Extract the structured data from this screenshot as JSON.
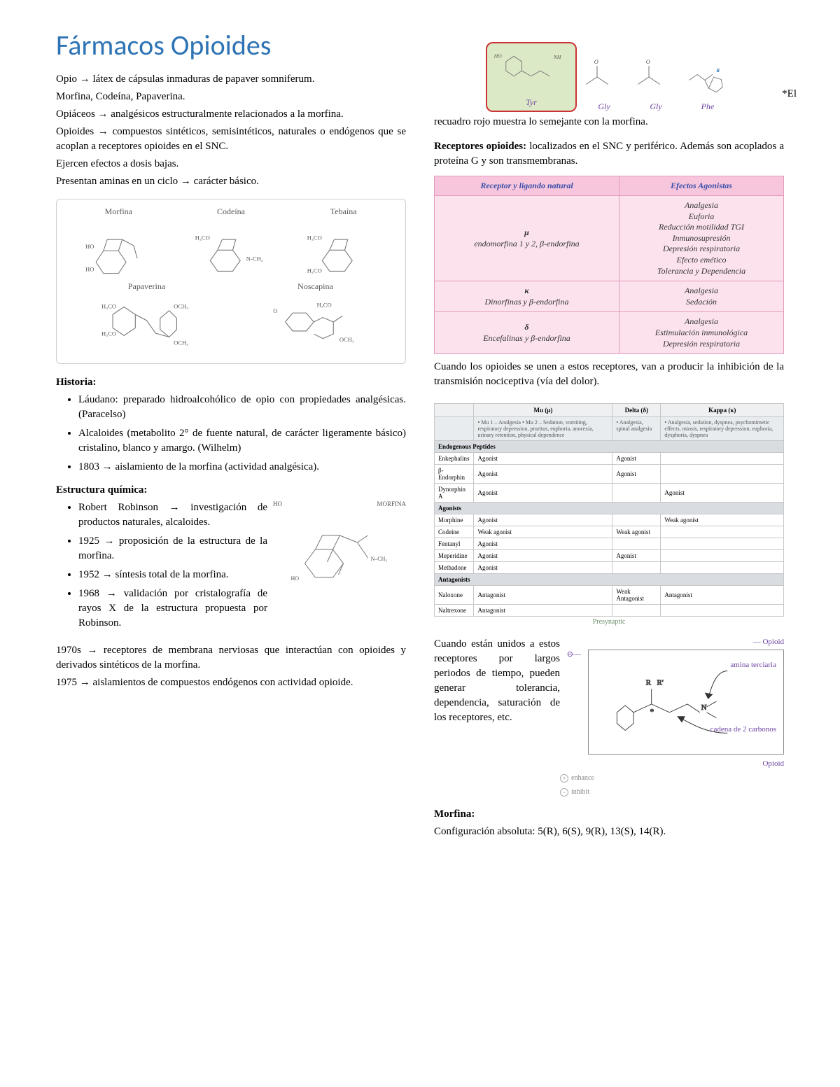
{
  "title": "Fármacos Opioides",
  "left": {
    "intro": [
      "Opio → látex de cápsulas inmaduras de papaver somniferum.",
      "Morfina, Codeína, Papaverina.",
      "Opiáceos → analgésicos estructuralmente relacionados a la morfina.",
      "Opioides → compuestos sintéticos, semisintéticos, naturales o endógenos que se acoplan a receptores opioides en el SNC.",
      "Ejercen efectos a dosis bajas.",
      "Presentan aminas en un ciclo → carácter básico."
    ],
    "structures": [
      "Morfina",
      "Codeína",
      "Tebaína",
      "Papaverina",
      "Noscapina"
    ],
    "historia_label": "Historia:",
    "historia": [
      "Láudano: preparado hidroalcohólico de opio con propiedades analgésicas. (Paracelso)",
      "Alcaloides (metabolito 2° de fuente natural, de carácter ligeramente básico)  cristalino, blanco y amargo. (Wilhelm)",
      "1803 → aislamiento de la morfina (actividad analgésica)."
    ],
    "estruct_label": "Estructura química:",
    "morphine_caption": "MORFINA",
    "estruct": [
      "Robert Robinson → investigación de productos naturales, alcaloides.",
      "1925 → proposición de la estructura de la morfina.",
      "1952 → síntesis total de la morfina.",
      "1968 → validación por cristalografía de rayos X de la estructura propuesta por Robinson."
    ],
    "tail": [
      "1970s → receptores de membrana nerviosas que interactúan con opioides y derivados sintéticos de la morfina.",
      "1975 → aislamientos de compuestos endógenos con actividad opioide."
    ]
  },
  "right": {
    "aa_labels": [
      "Tyr",
      "Gly",
      "Gly",
      "Phe"
    ],
    "r_label": "R",
    "ho_label": "HO",
    "nh_label": "NH",
    "asterisk": "*El",
    "caption": "recuadro rojo muestra lo semejante con la morfina.",
    "receptores_intro": "Receptores opioides: localizados en el SNC y periférico. Además son acoplados a proteína G y son transmembranas.",
    "receptores_intro_bold": "Receptores opioides:",
    "receptores_intro_rest": " localizados en el SNC y periférico. Además son acoplados a proteína G y son transmembranas.",
    "rec_table": {
      "head": [
        "Receptor y ligando natural",
        "Efectos Agonistas"
      ],
      "rows": [
        {
          "lig": "μ\nendomorfina 1 y 2, β-endorfina",
          "eff": "Analgesia\nEuforia\nReducción motilidad TGI\nInmunosupresión\nDepresión respiratoria\nEfecto emético\nTolerancia y Dependencia"
        },
        {
          "lig": "κ\nDinorfinas y β-endorfina",
          "eff": "Analgesia\nSedación"
        },
        {
          "lig": "δ\nEncefalinas y β-endorfina",
          "eff": "Analgesia\nEstimulación inmunológica\nDepresión respiratoria"
        }
      ]
    },
    "after_table": "Cuando los opioides se unen a estos receptores, van a producir la inhibición de la transmisión nociceptiva (vía del dolor).",
    "clin_table": {
      "head": [
        "",
        "Mu (μ)",
        "Delta (δ)",
        "Kappa (κ)"
      ],
      "desc": [
        "",
        "• Mu 1 – Analgesia\n• Mu 2 – Sedation, vomiting, respiratory depression, pruritus, euphoria, anorexia, urinary retention, physical dependence",
        "• Analgesia, spinal analgesia",
        "• Analgesia, sedation, dyspnea, psychomimetic effects, miosis, respiratory depression, euphoria, dysphoria, dyspnea"
      ],
      "groups": [
        {
          "title": "Endogenous Peptides",
          "rows": [
            [
              "Enkephalins",
              "Agonist",
              "Agonist",
              ""
            ],
            [
              "β-Endorphin",
              "Agonist",
              "Agonist",
              ""
            ],
            [
              "Dynorphin A",
              "Agonist",
              "",
              "Agonist"
            ]
          ]
        },
        {
          "title": "Agonists",
          "rows": [
            [
              "Morphine",
              "Agonist",
              "",
              "Weak agonist"
            ],
            [
              "Codeine",
              "Weak agonist",
              "Weak agonist",
              ""
            ],
            [
              "Fentanyl",
              "Agonist",
              "",
              ""
            ],
            [
              "Meperidine",
              "Agonist",
              "Agonist",
              ""
            ],
            [
              "Methadone",
              "Agonist",
              "",
              ""
            ]
          ]
        },
        {
          "title": "Antagonists",
          "rows": [
            [
              "Naloxone",
              "Antagonist",
              "Weak Antagonist",
              "Antagonist"
            ],
            [
              "Naltrexone",
              "Antagonist",
              "",
              ""
            ]
          ]
        }
      ],
      "presynaptic": "Presynaptic"
    },
    "wrap_text": "Cuando están unidos a estos receptores por largos periodos de tiempo, pueden generar tolerancia, dependencia, saturación de los receptores, etc.",
    "diag": {
      "amine": "amina terciaria",
      "chain": "cadena de 2 carbonos",
      "opioid": "Opioid",
      "enhance": "enhance",
      "inhibit": "inhibit",
      "R": "R",
      "Rp": "R'"
    },
    "morfina_label": "Morfina:",
    "morfina_text": "Configuración absoluta: 5(R), 6(S), 9(R), 13(S), 14(R)."
  },
  "colors": {
    "title": "#2e74b5",
    "table_header_bg": "#f7c6dd",
    "table_row_bg": "#fbe2ed",
    "table_border": "#e39bbd",
    "highlight_fill": "#dbe9c6",
    "highlight_border": "#cc3333",
    "purple": "#6b3fa0"
  }
}
